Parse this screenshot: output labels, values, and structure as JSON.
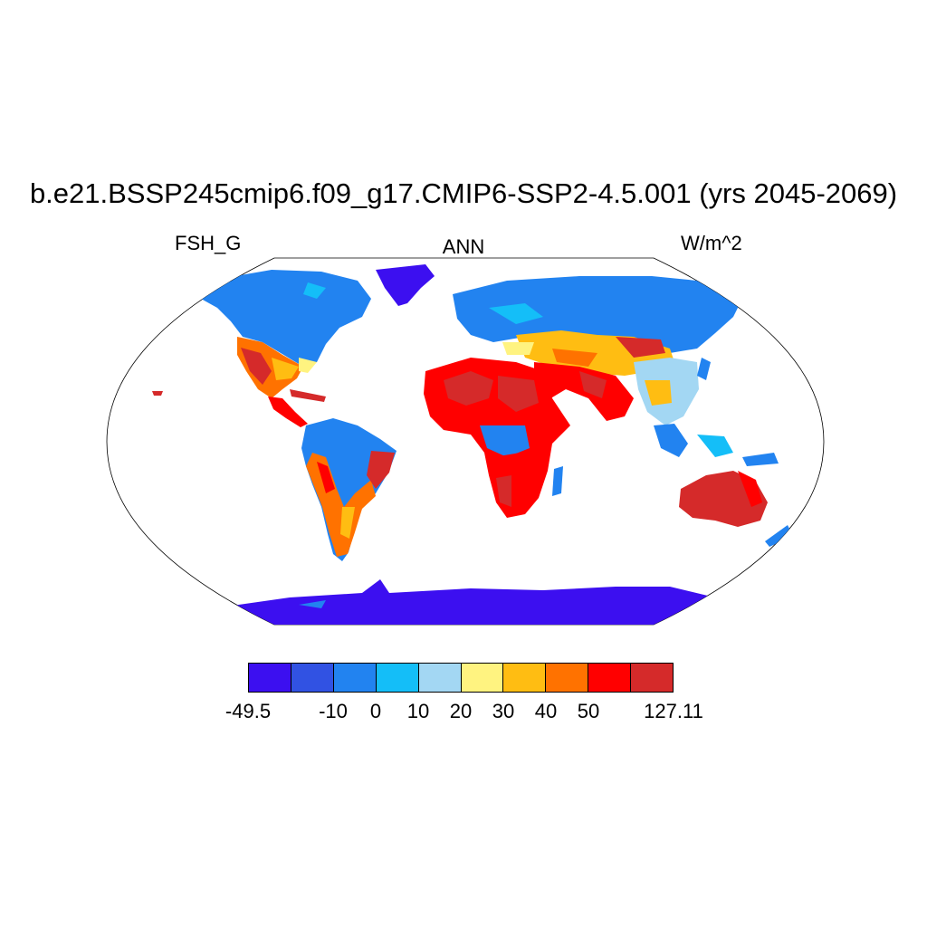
{
  "title": "b.e21.BSSP245cmip6.f09_g17.CMIP6-SSP2-4.5.001 (yrs 2045-2069)",
  "variable": "FSH_G",
  "season": "ANN",
  "units": "W/m^2",
  "colorbar": {
    "colors": [
      "#3c0ff0",
      "#3152e3",
      "#2283f0",
      "#14bef8",
      "#a3d7f3",
      "#fff380",
      "#ffbd12",
      "#ff7200",
      "#ff0000",
      "#d52a2a"
    ],
    "labels": [
      "-49.5",
      "",
      "-10",
      "0",
      "10",
      "20",
      "30",
      "40",
      "50",
      "",
      "127.11"
    ]
  }
}
